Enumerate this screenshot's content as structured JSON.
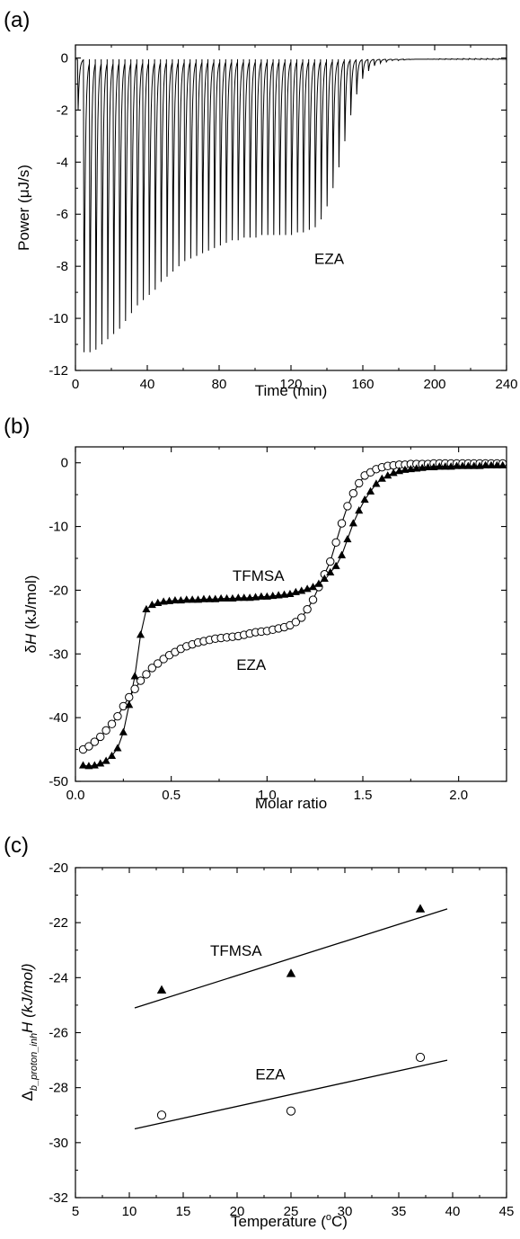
{
  "chart_data": [
    {
      "panel_label": "(a)",
      "type": "line",
      "xlabel": "Time (min)",
      "ylabel": "Power (μJ/s)",
      "xlim": [
        0,
        240
      ],
      "ylim": [
        -12,
        0.5
      ],
      "xticks": [
        0,
        40,
        80,
        120,
        160,
        200,
        240
      ],
      "yticks": [
        0,
        -2,
        -4,
        -6,
        -8,
        -10,
        -12
      ],
      "annotations": [
        {
          "text": "EZA",
          "x": 133,
          "y": -7.9
        }
      ],
      "series": [
        {
          "injection_times": [
            1.5,
            4.8,
            8.1,
            11.4,
            14.7,
            18.0,
            21.3,
            24.6,
            27.9,
            31.2,
            34.5,
            37.8,
            41.1,
            44.4,
            47.7,
            51.0,
            54.3,
            57.6,
            60.9,
            64.2,
            67.5,
            70.8,
            74.1,
            77.4,
            80.7,
            84.0,
            87.3,
            90.6,
            93.9,
            97.2,
            100.5,
            103.8,
            107.1,
            110.4,
            113.7,
            117.0,
            120.3,
            123.6,
            126.9,
            130.2,
            133.5,
            136.8,
            140.1,
            143.4,
            146.7,
            150.0,
            153.3,
            156.6,
            159.9,
            163.2,
            166.5,
            169.8,
            173.1,
            176.4,
            179.7,
            183.0,
            186.3,
            189.6,
            192.9,
            196.2,
            199.5,
            202.8,
            206.1,
            209.4,
            212.7,
            216.0,
            219.3,
            222.6,
            225.9,
            229.2,
            232.5,
            235.8
          ],
          "peak_depths": [
            -2.0,
            -11.3,
            -11.3,
            -11.2,
            -11.0,
            -10.8,
            -10.6,
            -10.4,
            -10.1,
            -9.8,
            -9.5,
            -9.3,
            -9.1,
            -8.9,
            -8.6,
            -8.4,
            -8.2,
            -8.0,
            -7.8,
            -7.7,
            -7.6,
            -7.5,
            -7.4,
            -7.3,
            -7.2,
            -7.1,
            -7.0,
            -7.0,
            -6.9,
            -6.9,
            -6.9,
            -6.8,
            -6.8,
            -6.8,
            -6.8,
            -6.8,
            -6.8,
            -6.7,
            -6.7,
            -6.6,
            -6.5,
            -6.2,
            -5.7,
            -5.0,
            -4.2,
            -3.2,
            -2.2,
            -1.4,
            -0.8,
            -0.5,
            -0.3,
            -0.2,
            -0.15,
            -0.1,
            -0.1,
            -0.08,
            -0.06,
            -0.05,
            -0.05,
            -0.04,
            -0.04,
            -0.03,
            -0.03,
            -0.03,
            -0.03,
            -0.02,
            -0.02,
            -0.02,
            -0.02,
            -0.02,
            -0.02,
            -0.02
          ]
        }
      ]
    },
    {
      "panel_label": "(b)",
      "type": "scatter",
      "xlabel": "Molar ratio",
      "ylabel": "δH (kJ/mol)",
      "ylabel_prefix": "δ",
      "ylabel_italic": "H",
      "ylabel_suffix": " (kJ/mol)",
      "xlim": [
        0,
        2.25
      ],
      "ylim": [
        -50,
        2.5
      ],
      "xticks": [
        0.0,
        0.5,
        1.0,
        1.5,
        2.0
      ],
      "xtick_labels": [
        "0.0",
        "0.5",
        "1.0",
        "1.5",
        "2.0"
      ],
      "yticks": [
        0,
        -10,
        -20,
        -30,
        -40,
        -50
      ],
      "annotations": [
        {
          "text": "TFMSA",
          "x": 0.82,
          "y": -18.5
        },
        {
          "text": "EZA",
          "x": 0.84,
          "y": -32.5
        }
      ],
      "series": [
        {
          "name": "TFMSA",
          "marker": "filled-triangle",
          "x": [
            0.04,
            0.07,
            0.1,
            0.13,
            0.16,
            0.19,
            0.22,
            0.25,
            0.28,
            0.31,
            0.34,
            0.37,
            0.4,
            0.43,
            0.46,
            0.49,
            0.52,
            0.55,
            0.58,
            0.61,
            0.64,
            0.67,
            0.7,
            0.73,
            0.76,
            0.79,
            0.82,
            0.85,
            0.88,
            0.91,
            0.94,
            0.97,
            1.0,
            1.03,
            1.06,
            1.09,
            1.12,
            1.15,
            1.18,
            1.21,
            1.24,
            1.27,
            1.3,
            1.33,
            1.36,
            1.39,
            1.42,
            1.45,
            1.48,
            1.51,
            1.54,
            1.57,
            1.6,
            1.63,
            1.66,
            1.69,
            1.72,
            1.75,
            1.78,
            1.81,
            1.84,
            1.87,
            1.9,
            1.93,
            1.96,
            1.99,
            2.02,
            2.05,
            2.08,
            2.11,
            2.14,
            2.17,
            2.2,
            2.23
          ],
          "y": [
            -47.5,
            -47.6,
            -47.5,
            -47.2,
            -46.8,
            -46.0,
            -44.8,
            -42.3,
            -38.0,
            -33.5,
            -27.0,
            -23.0,
            -22.3,
            -22.0,
            -21.8,
            -21.7,
            -21.6,
            -21.6,
            -21.5,
            -21.5,
            -21.5,
            -21.4,
            -21.4,
            -21.4,
            -21.3,
            -21.3,
            -21.3,
            -21.2,
            -21.2,
            -21.2,
            -21.1,
            -21.0,
            -21.0,
            -20.9,
            -20.8,
            -20.7,
            -20.6,
            -20.3,
            -20.1,
            -19.8,
            -19.5,
            -19.0,
            -18.2,
            -17.2,
            -16.2,
            -14.5,
            -12.0,
            -9.5,
            -7.5,
            -5.8,
            -4.5,
            -3.3,
            -2.5,
            -2.0,
            -1.6,
            -1.3,
            -1.1,
            -1.0,
            -0.9,
            -0.8,
            -0.7,
            -0.7,
            -0.6,
            -0.6,
            -0.6,
            -0.5,
            -0.5,
            -0.5,
            -0.5,
            -0.5,
            -0.4,
            -0.4,
            -0.4,
            -0.4
          ]
        },
        {
          "name": "EZA",
          "marker": "open-circle",
          "x": [
            0.04,
            0.07,
            0.1,
            0.13,
            0.16,
            0.19,
            0.22,
            0.25,
            0.28,
            0.31,
            0.34,
            0.37,
            0.4,
            0.43,
            0.46,
            0.49,
            0.52,
            0.55,
            0.58,
            0.61,
            0.64,
            0.67,
            0.7,
            0.73,
            0.76,
            0.79,
            0.82,
            0.85,
            0.88,
            0.91,
            0.94,
            0.97,
            1.0,
            1.03,
            1.06,
            1.09,
            1.12,
            1.15,
            1.18,
            1.21,
            1.24,
            1.27,
            1.3,
            1.33,
            1.36,
            1.39,
            1.42,
            1.45,
            1.48,
            1.51,
            1.54,
            1.57,
            1.6,
            1.63,
            1.66,
            1.69,
            1.72,
            1.75,
            1.78,
            1.81,
            1.84,
            1.87,
            1.9,
            1.93,
            1.96,
            1.99,
            2.02,
            2.05,
            2.08,
            2.11,
            2.14,
            2.17,
            2.2,
            2.23
          ],
          "y": [
            -45.0,
            -44.5,
            -43.8,
            -43.0,
            -42.0,
            -41.0,
            -39.8,
            -38.2,
            -36.8,
            -35.5,
            -34.2,
            -33.2,
            -32.2,
            -31.5,
            -30.8,
            -30.2,
            -29.7,
            -29.2,
            -28.8,
            -28.5,
            -28.2,
            -28.0,
            -27.8,
            -27.6,
            -27.5,
            -27.4,
            -27.3,
            -27.2,
            -27.0,
            -26.8,
            -26.6,
            -26.5,
            -26.4,
            -26.2,
            -26.0,
            -25.8,
            -25.5,
            -25.0,
            -24.3,
            -23.0,
            -21.5,
            -19.5,
            -17.5,
            -15.5,
            -12.5,
            -9.5,
            -6.8,
            -4.8,
            -3.2,
            -2.0,
            -1.5,
            -1.0,
            -0.7,
            -0.5,
            -0.4,
            -0.3,
            -0.3,
            -0.2,
            -0.2,
            -0.2,
            -0.2,
            -0.1,
            -0.1,
            -0.1,
            -0.1,
            -0.1,
            -0.1,
            -0.1,
            -0.1,
            -0.1,
            -0.1,
            -0.1,
            -0.1,
            -0.1
          ]
        }
      ]
    },
    {
      "panel_label": "(c)",
      "type": "scatter",
      "xlabel": "Temperature (°C)",
      "xlabel_main": "Temperature (",
      "xlabel_sup": "o",
      "xlabel_end": "C)",
      "ylabel_delta": "Δ",
      "ylabel_sub": "b_proton_inh",
      "ylabel_rest": "H (kJ/mol)",
      "xlim": [
        5,
        45
      ],
      "ylim": [
        -32,
        -20
      ],
      "xticks": [
        5,
        10,
        15,
        20,
        25,
        30,
        35,
        40,
        45
      ],
      "yticks": [
        -20,
        -22,
        -24,
        -26,
        -28,
        -30,
        -32
      ],
      "annotations": [
        {
          "text": "TFMSA",
          "x": 17.5,
          "y": -23.2
        },
        {
          "text": "EZA",
          "x": 21.7,
          "y": -27.7
        }
      ],
      "series": [
        {
          "name": "TFMSA",
          "marker": "filled-triangle",
          "x": [
            13,
            25,
            37
          ],
          "y": [
            -24.45,
            -23.85,
            -21.5
          ],
          "fit_line": {
            "x": [
              10.5,
              39.5
            ],
            "y": [
              -25.1,
              -21.5
            ]
          }
        },
        {
          "name": "EZA",
          "marker": "open-circle",
          "x": [
            13,
            25,
            37
          ],
          "y": [
            -29.0,
            -28.85,
            -26.9
          ],
          "fit_line": {
            "x": [
              10.5,
              39.5
            ],
            "y": [
              -29.5,
              -27.0
            ]
          }
        }
      ]
    }
  ]
}
